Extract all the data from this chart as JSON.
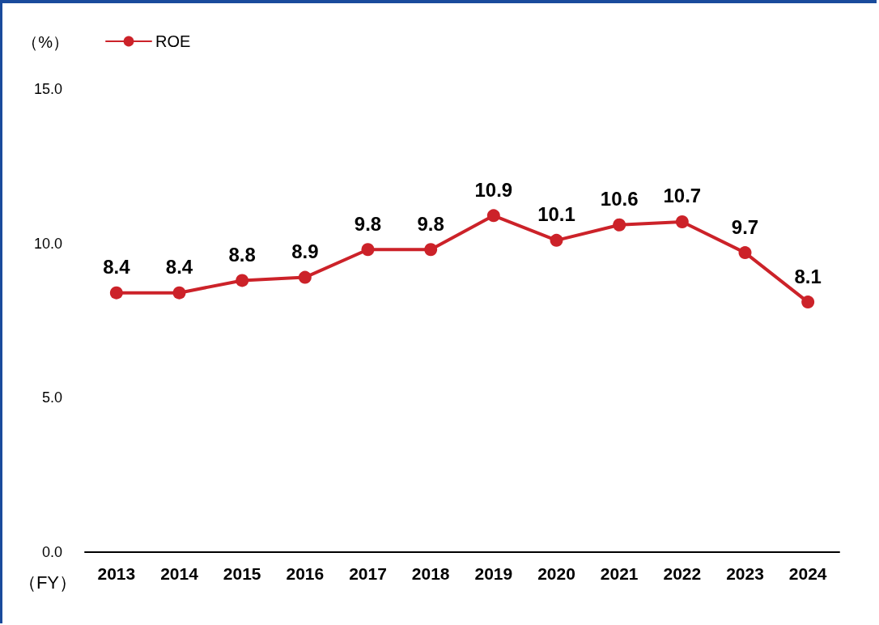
{
  "chart_data": {
    "type": "line",
    "ylabel": "（%）",
    "xlabel": "（FY）",
    "categories": [
      "2013",
      "2014",
      "2015",
      "2016",
      "2017",
      "2018",
      "2019",
      "2020",
      "2021",
      "2022",
      "2023",
      "2024"
    ],
    "series": [
      {
        "name": "ROE",
        "color": "#cc2229",
        "values": [
          8.4,
          8.4,
          8.8,
          8.9,
          9.8,
          9.8,
          10.9,
          10.1,
          10.6,
          10.7,
          9.7,
          8.1
        ]
      }
    ],
    "ylim": [
      0,
      15
    ],
    "yticks": [
      {
        "value": 0,
        "label": "0.0"
      },
      {
        "value": 5,
        "label": "5.0"
      },
      {
        "value": 10,
        "label": "10.0"
      },
      {
        "value": 15,
        "label": "15.0"
      }
    ],
    "data_labels": true,
    "legend": "top left",
    "marker": "circle",
    "line_style": "solid",
    "grid": false
  }
}
